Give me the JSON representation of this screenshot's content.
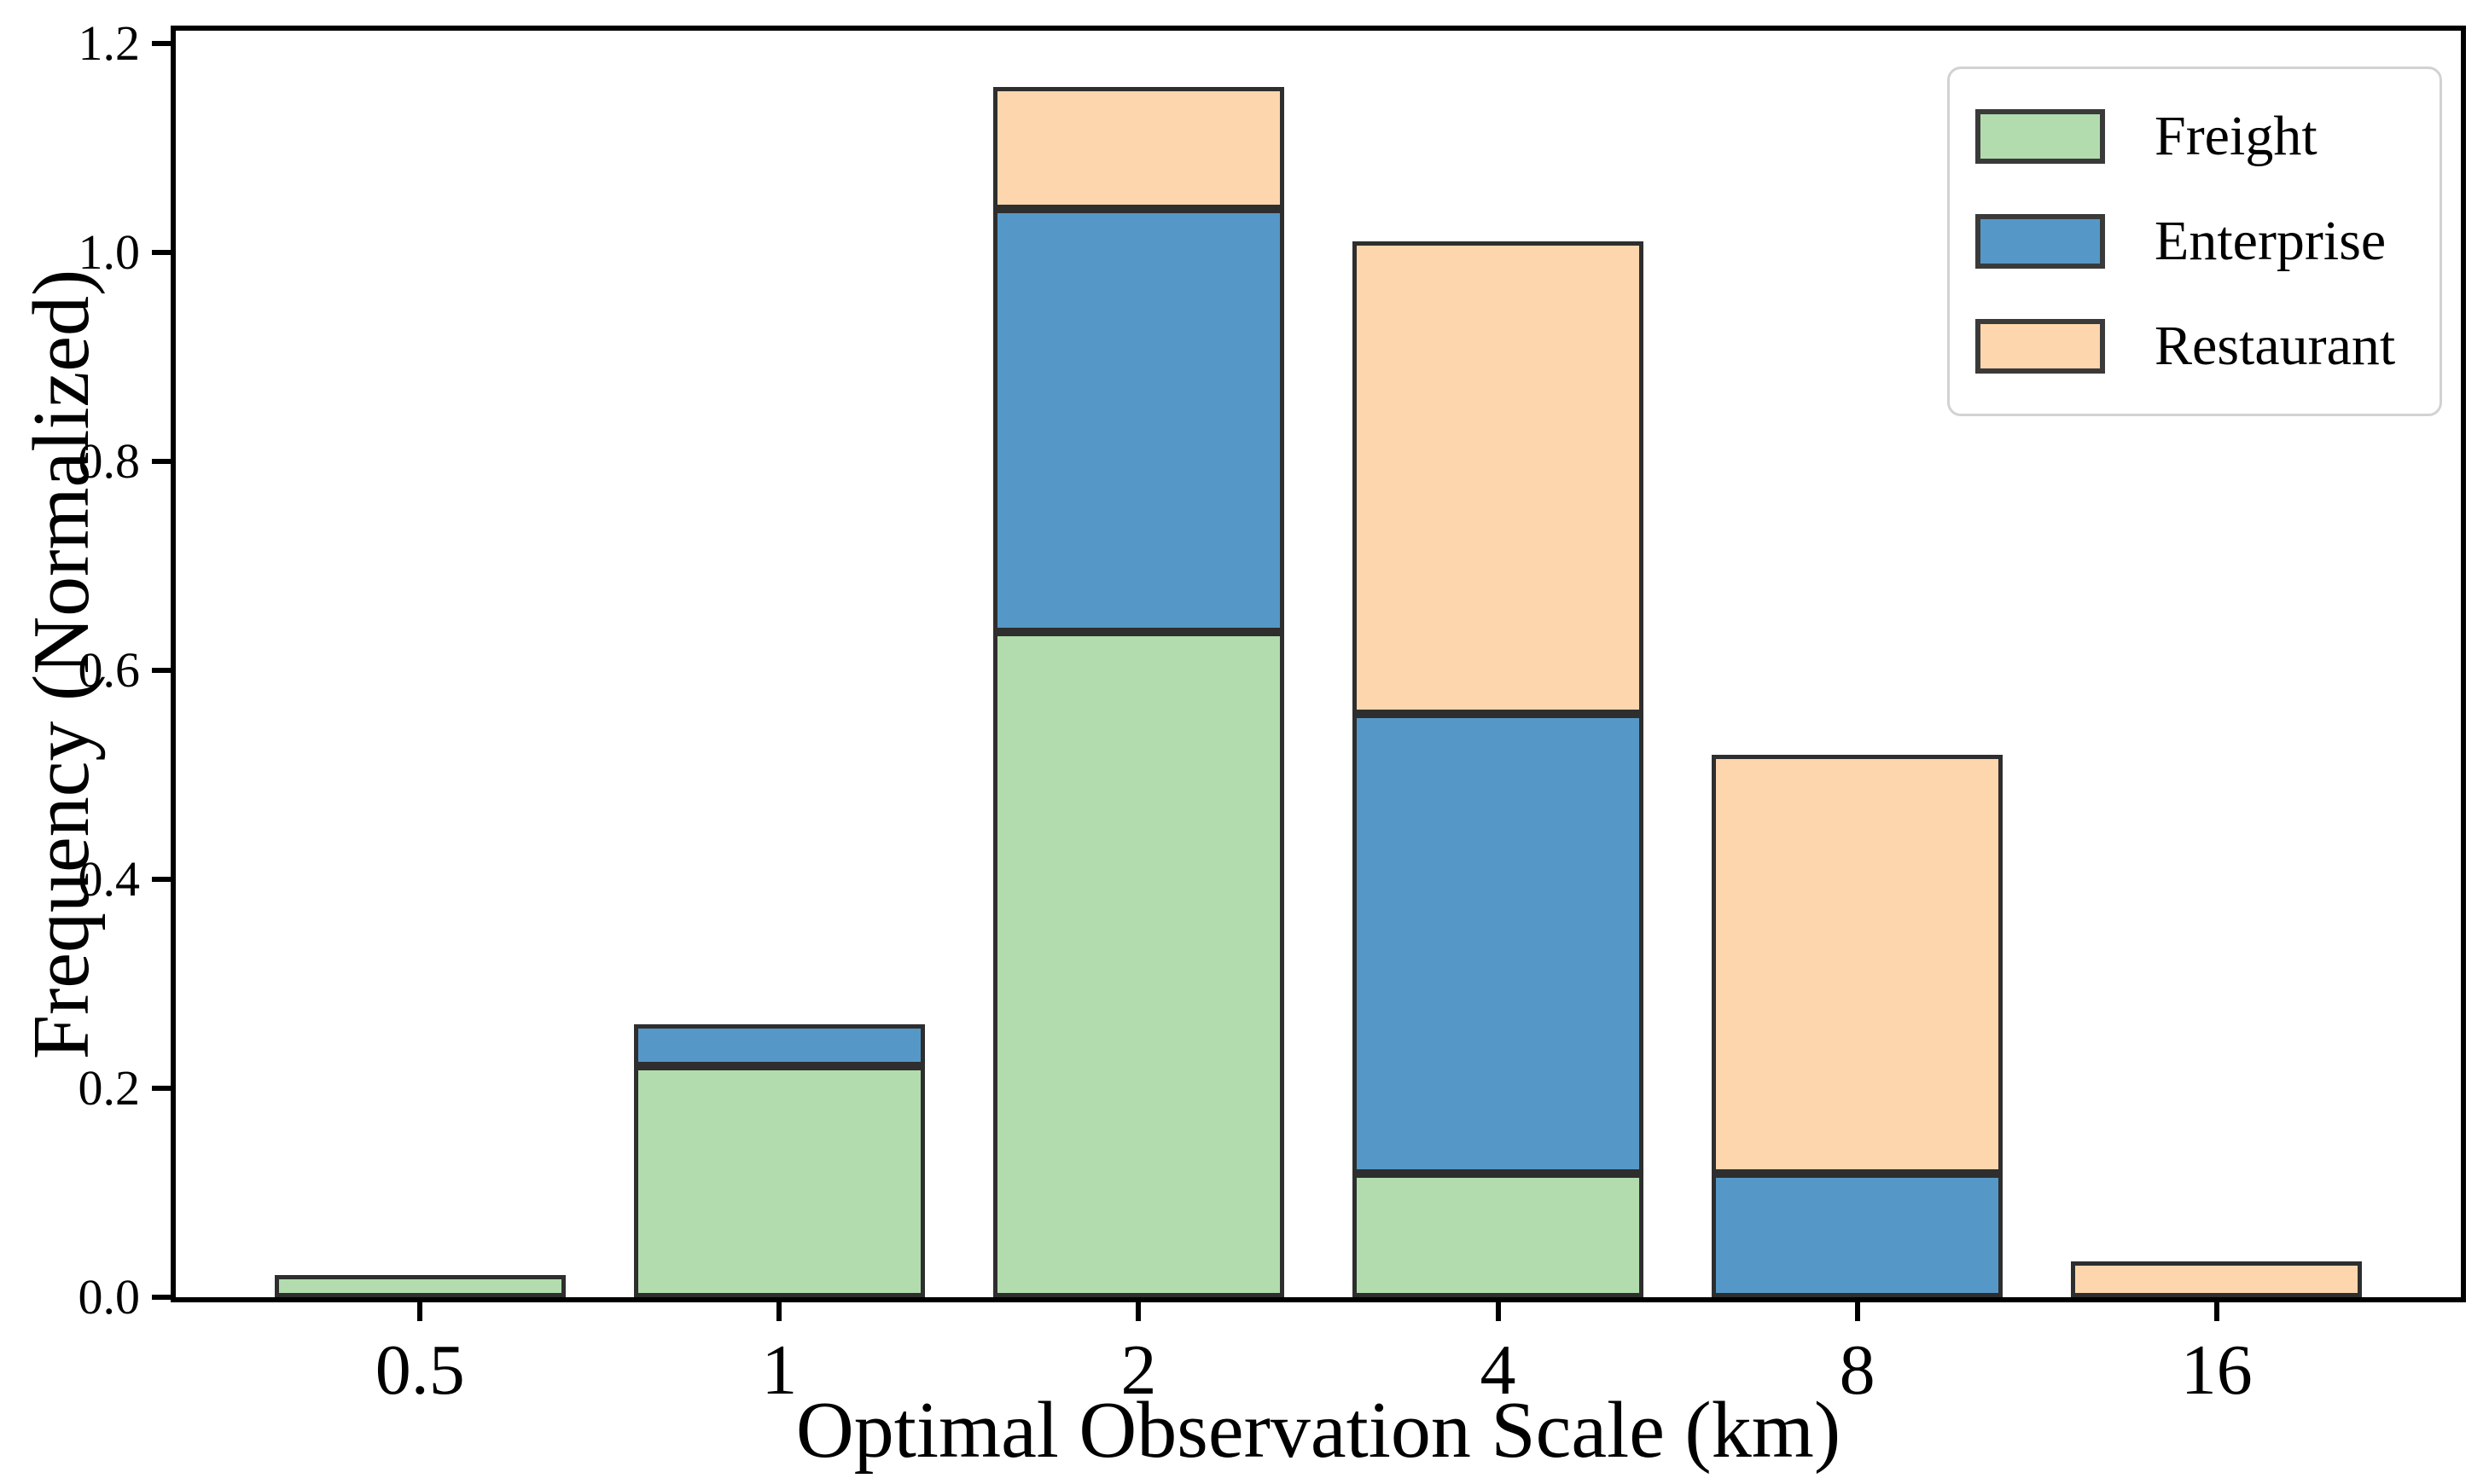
{
  "figure": {
    "background": "#ffffff",
    "axis_color": "#000000",
    "bar_edge_color": "#2e2e2e"
  },
  "chart_data": {
    "type": "bar",
    "stacked": true,
    "title": "",
    "xlabel": "Optimal Observation Scale (km)",
    "ylabel": "Frequency (Normalized)",
    "categories": [
      "0.5",
      "1",
      "2",
      "4",
      "8",
      "16"
    ],
    "series": [
      {
        "name": "Freight",
        "color": "#b2dcae",
        "values": [
          0.021,
          0.221,
          0.637,
          0.118,
          0,
          0
        ]
      },
      {
        "name": "Enterprise",
        "color": "#5598c8",
        "values": [
          0,
          0.04,
          0.405,
          0.44,
          0.118,
          0
        ]
      },
      {
        "name": "Restaurant",
        "color": "#fdd6ad",
        "values": [
          0,
          0,
          0.116,
          0.453,
          0.401,
          0.034
        ]
      }
    ],
    "stack_totals": [
      0.021,
      0.261,
      1.158,
      1.011,
      0.519,
      0.034
    ],
    "ytick_labels": [
      "0.0",
      "0.2",
      "0.4",
      "0.6",
      "0.8",
      "1.0",
      "1.2"
    ],
    "yticks": [
      0.0,
      0.2,
      0.4,
      0.6,
      0.8,
      1.0,
      1.2
    ],
    "ylim": [
      0,
      1.213
    ],
    "grid": false,
    "legend": {
      "position": "upper right",
      "entries": [
        "Freight",
        "Enterprise",
        "Restaurant"
      ]
    }
  }
}
